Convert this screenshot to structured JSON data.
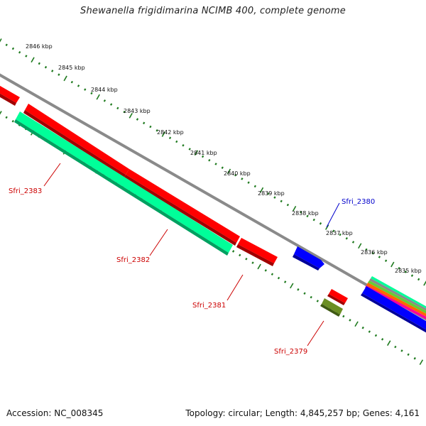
{
  "title": "Shewanella frigidimarina NCIMB 400, complete genome",
  "footer": {
    "accession": "Accession: NC_008345",
    "topology": "Topology: circular; Length: 4,845,257 bp; Genes: 4,161"
  },
  "colors": {
    "backbone": "#8a8a8a",
    "ticks": "#1f7a1f",
    "gene_forward": "#ff0000",
    "gene_reverse": "#00ff99",
    "gene_blue": "#0000ff",
    "gene_olive": "#6b8e23",
    "label_red": "#cc0000",
    "label_blue": "#0000cc"
  },
  "ticks": [
    {
      "label": "2846 kbp"
    },
    {
      "label": "2845 kbp"
    },
    {
      "label": "2844 kbp"
    },
    {
      "label": "2843 kbp"
    },
    {
      "label": "2842 kbp"
    },
    {
      "label": "2841 kbp"
    },
    {
      "label": "2840 kbp"
    },
    {
      "label": "2839 kbp"
    },
    {
      "label": "2838 kbp"
    },
    {
      "label": "2837 kbp"
    },
    {
      "label": "2836 kbp"
    },
    {
      "label": "2835 kbp"
    }
  ],
  "gene_labels": [
    {
      "label": "Sfri_2383",
      "color": "#cc0000"
    },
    {
      "label": "Sfri_2382",
      "color": "#cc0000"
    },
    {
      "label": "Sfri_2381",
      "color": "#cc0000"
    },
    {
      "label": "Sfri_2380",
      "color": "#0000cc"
    },
    {
      "label": "Sfri_2379",
      "color": "#cc0000"
    }
  ]
}
